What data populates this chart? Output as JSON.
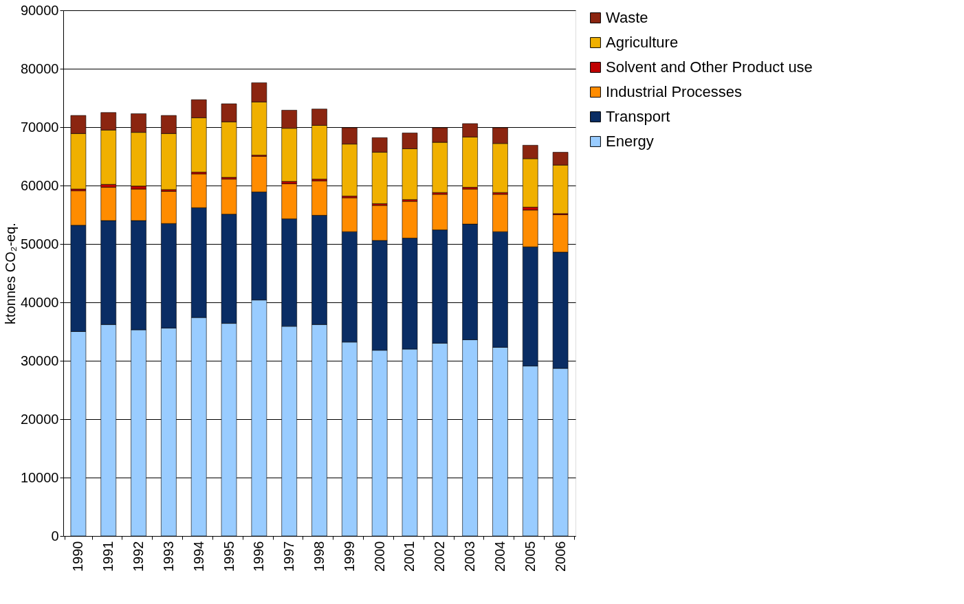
{
  "chart_data": {
    "type": "bar",
    "stacked": true,
    "ylabel": "ktonnes CO₂-eq.",
    "categories": [
      "1990",
      "1991",
      "1992",
      "1993",
      "1994",
      "1995",
      "1996",
      "1997",
      "1998",
      "1999",
      "2000",
      "2001",
      "2002",
      "2003",
      "2004",
      "2005",
      "2006"
    ],
    "series": [
      {
        "name": "Energy",
        "color": "#99ccff",
        "values": [
          35000,
          36200,
          35300,
          35600,
          37400,
          36400,
          40400,
          35900,
          36200,
          33200,
          31800,
          32000,
          33000,
          33600,
          32300,
          29100,
          28700
        ]
      },
      {
        "name": "Transport",
        "color": "#0a2d64",
        "values": [
          18200,
          17800,
          18700,
          17900,
          18800,
          18700,
          18500,
          18400,
          18700,
          18900,
          18800,
          19000,
          19400,
          19800,
          19800,
          20400,
          19900
        ]
      },
      {
        "name": "Industrial Processes",
        "color": "#ff8c00",
        "values": [
          5900,
          5700,
          5400,
          5500,
          5800,
          6000,
          6100,
          6000,
          5900,
          5800,
          6000,
          6300,
          6100,
          6000,
          6400,
          6300,
          6400
        ]
      },
      {
        "name": "Solvent and Other Product use",
        "color": "#c00000",
        "values": [
          300,
          500,
          500,
          300,
          300,
          300,
          200,
          400,
          300,
          300,
          300,
          300,
          300,
          300,
          300,
          500,
          200
        ]
      },
      {
        "name": "Agriculture",
        "color": "#f0b000",
        "values": [
          9500,
          9300,
          9200,
          9600,
          9300,
          9500,
          9100,
          9100,
          9200,
          8900,
          8800,
          8700,
          8600,
          8600,
          8400,
          8300,
          8300
        ]
      },
      {
        "name": "Waste",
        "color": "#8b2510",
        "values": [
          3100,
          3000,
          3200,
          3100,
          3100,
          3100,
          3300,
          3100,
          2800,
          2800,
          2500,
          2700,
          2500,
          2300,
          2700,
          2300,
          2200
        ]
      }
    ],
    "ylim": [
      0,
      90000
    ],
    "yticks": [
      0,
      10000,
      20000,
      30000,
      40000,
      50000,
      60000,
      70000,
      80000,
      90000
    ],
    "grid": "y",
    "legend": "right"
  }
}
